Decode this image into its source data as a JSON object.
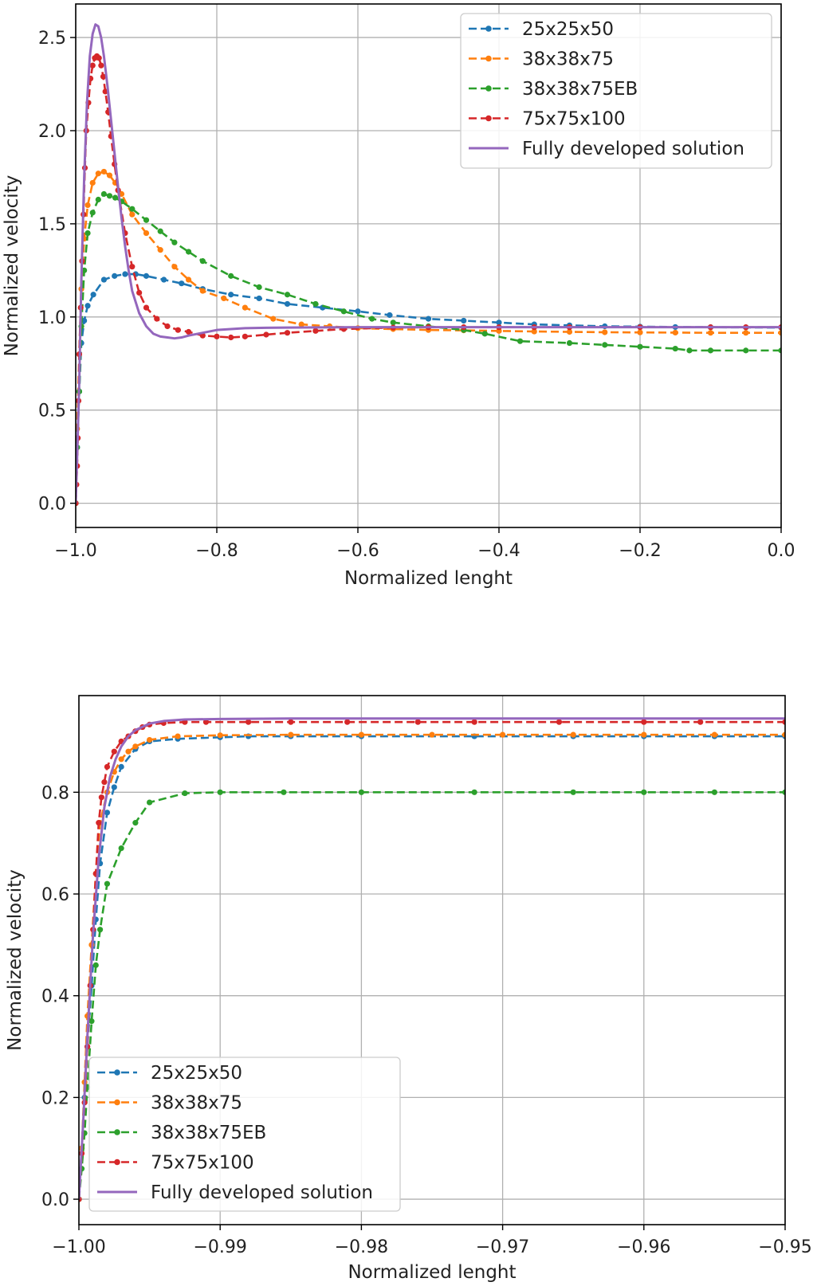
{
  "chart_data": [
    {
      "type": "line",
      "xlabel": "Normalized lenght",
      "ylabel": "Normalized velocity",
      "xlim": [
        -1.0,
        0.0
      ],
      "ylim": [
        -0.13,
        2.68
      ],
      "xticks": [
        -1.0,
        -0.8,
        -0.6,
        -0.4,
        -0.2,
        0.0
      ],
      "xtick_labels": [
        "−1.0",
        "−0.8",
        "−0.6",
        "−0.4",
        "−0.2",
        "0.0"
      ],
      "yticks": [
        0.0,
        0.5,
        1.0,
        1.5,
        2.0,
        2.5
      ],
      "ytick_labels": [
        "0.0",
        "0.5",
        "1.0",
        "1.5",
        "2.0",
        "2.5"
      ],
      "grid": true,
      "legend_position": "top-right",
      "series": [
        {
          "name": "25x25x50",
          "color": "#1f77b4",
          "style": "dashed-markers",
          "x": [
            -1.0,
            -0.998,
            -0.995,
            -0.992,
            -0.988,
            -0.983,
            -0.975,
            -0.96,
            -0.945,
            -0.93,
            -0.915,
            -0.9,
            -0.875,
            -0.85,
            -0.82,
            -0.78,
            -0.74,
            -0.7,
            -0.65,
            -0.6,
            -0.555,
            -0.5,
            -0.45,
            -0.4,
            -0.35,
            -0.3,
            -0.25,
            -0.2,
            -0.15,
            -0.1,
            -0.05,
            0.0
          ],
          "y": [
            0.0,
            0.3,
            0.6,
            0.86,
            0.98,
            1.06,
            1.12,
            1.2,
            1.22,
            1.23,
            1.23,
            1.22,
            1.2,
            1.18,
            1.15,
            1.12,
            1.1,
            1.07,
            1.05,
            1.03,
            1.01,
            0.99,
            0.98,
            0.97,
            0.96,
            0.955,
            0.95,
            0.948,
            0.946,
            0.945,
            0.944,
            0.943
          ]
        },
        {
          "name": "38x38x75",
          "color": "#ff7f0e",
          "style": "dashed-markers",
          "x": [
            -1.0,
            -0.998,
            -0.995,
            -0.992,
            -0.988,
            -0.983,
            -0.976,
            -0.968,
            -0.96,
            -0.952,
            -0.944,
            -0.935,
            -0.92,
            -0.9,
            -0.88,
            -0.86,
            -0.84,
            -0.82,
            -0.79,
            -0.76,
            -0.72,
            -0.68,
            -0.64,
            -0.6,
            -0.55,
            -0.5,
            -0.45,
            -0.4,
            -0.35,
            -0.3,
            -0.25,
            -0.2,
            -0.15,
            -0.1,
            -0.05,
            0.0
          ],
          "y": [
            0.0,
            0.4,
            0.8,
            1.15,
            1.42,
            1.6,
            1.72,
            1.77,
            1.78,
            1.76,
            1.72,
            1.66,
            1.55,
            1.45,
            1.36,
            1.27,
            1.2,
            1.14,
            1.1,
            1.05,
            0.99,
            0.96,
            0.95,
            0.94,
            0.935,
            0.93,
            0.928,
            0.925,
            0.922,
            0.92,
            0.918,
            0.917,
            0.916,
            0.915,
            0.915,
            0.915
          ]
        },
        {
          "name": "38x38x75EB",
          "color": "#2ca02c",
          "style": "dashed-markers",
          "x": [
            -1.0,
            -0.998,
            -0.995,
            -0.992,
            -0.988,
            -0.983,
            -0.976,
            -0.968,
            -0.96,
            -0.952,
            -0.944,
            -0.935,
            -0.92,
            -0.9,
            -0.88,
            -0.86,
            -0.84,
            -0.82,
            -0.78,
            -0.74,
            -0.7,
            -0.66,
            -0.62,
            -0.58,
            -0.55,
            -0.5,
            -0.45,
            -0.42,
            -0.37,
            -0.3,
            -0.25,
            -0.2,
            -0.15,
            -0.13,
            -0.1,
            -0.05,
            0.0
          ],
          "y": [
            0.0,
            0.3,
            0.6,
            0.95,
            1.25,
            1.45,
            1.56,
            1.63,
            1.66,
            1.65,
            1.64,
            1.62,
            1.58,
            1.52,
            1.46,
            1.4,
            1.35,
            1.3,
            1.22,
            1.16,
            1.12,
            1.07,
            1.03,
            0.99,
            0.97,
            0.95,
            0.93,
            0.91,
            0.87,
            0.86,
            0.85,
            0.84,
            0.83,
            0.82,
            0.82,
            0.82,
            0.82
          ]
        },
        {
          "name": "75x75x100",
          "color": "#d62728",
          "style": "dashed-markers",
          "x": [
            -1.0,
            -0.999,
            -0.998,
            -0.997,
            -0.996,
            -0.995,
            -0.993,
            -0.991,
            -0.989,
            -0.987,
            -0.985,
            -0.982,
            -0.979,
            -0.976,
            -0.973,
            -0.97,
            -0.967,
            -0.964,
            -0.961,
            -0.958,
            -0.954,
            -0.95,
            -0.945,
            -0.94,
            -0.93,
            -0.92,
            -0.91,
            -0.9,
            -0.885,
            -0.87,
            -0.855,
            -0.84,
            -0.82,
            -0.8,
            -0.78,
            -0.76,
            -0.73,
            -0.7,
            -0.66,
            -0.62,
            -0.55,
            -0.5,
            -0.45,
            -0.4,
            -0.35,
            -0.3,
            -0.2,
            -0.1,
            -0.05,
            0.0
          ],
          "y": [
            0.0,
            0.1,
            0.2,
            0.35,
            0.55,
            0.8,
            1.05,
            1.3,
            1.55,
            1.8,
            2.0,
            2.15,
            2.28,
            2.35,
            2.39,
            2.4,
            2.39,
            2.35,
            2.29,
            2.21,
            2.1,
            1.97,
            1.82,
            1.68,
            1.45,
            1.27,
            1.13,
            1.05,
            0.99,
            0.95,
            0.93,
            0.92,
            0.9,
            0.895,
            0.89,
            0.895,
            0.905,
            0.915,
            0.925,
            0.935,
            0.943,
            0.945,
            0.945,
            0.945,
            0.945,
            0.945,
            0.945,
            0.945,
            0.945,
            0.945
          ]
        },
        {
          "name": "Fully developed solution",
          "color": "#9467bd",
          "style": "solid",
          "x": [
            -1.0,
            -0.998,
            -0.995,
            -0.992,
            -0.988,
            -0.984,
            -0.98,
            -0.976,
            -0.972,
            -0.968,
            -0.964,
            -0.96,
            -0.955,
            -0.95,
            -0.945,
            -0.94,
            -0.935,
            -0.93,
            -0.925,
            -0.92,
            -0.91,
            -0.9,
            -0.89,
            -0.88,
            -0.87,
            -0.86,
            -0.85,
            -0.84,
            -0.82,
            -0.8,
            -0.78,
            -0.76,
            -0.73,
            -0.7,
            -0.65,
            -0.6,
            -0.5,
            -0.4,
            -0.3,
            -0.2,
            -0.1,
            0.0
          ],
          "y": [
            0.0,
            0.25,
            0.65,
            1.2,
            1.75,
            2.15,
            2.4,
            2.52,
            2.57,
            2.56,
            2.5,
            2.4,
            2.24,
            2.06,
            1.88,
            1.7,
            1.53,
            1.38,
            1.25,
            1.14,
            1.02,
            0.95,
            0.91,
            0.895,
            0.89,
            0.885,
            0.89,
            0.9,
            0.915,
            0.93,
            0.935,
            0.94,
            0.942,
            0.943,
            0.944,
            0.945,
            0.945,
            0.945,
            0.945,
            0.945,
            0.945,
            0.945
          ]
        }
      ]
    },
    {
      "type": "line",
      "xlabel": "Normalized lenght",
      "ylabel": "Normalized velocity",
      "xlim": [
        -1.0,
        -0.95
      ],
      "ylim": [
        -0.05,
        0.99
      ],
      "xticks": [
        -1.0,
        -0.99,
        -0.98,
        -0.97,
        -0.96,
        -0.95
      ],
      "xtick_labels": [
        "−1.00",
        "−0.99",
        "−0.98",
        "−0.97",
        "−0.96",
        "−0.95"
      ],
      "yticks": [
        0.0,
        0.2,
        0.4,
        0.6,
        0.8
      ],
      "ytick_labels": [
        "0.0",
        "0.2",
        "0.4",
        "0.6",
        "0.8"
      ],
      "grid": true,
      "legend_position": "bottom-left",
      "series": [
        {
          "name": "25x25x50",
          "color": "#1f77b4",
          "style": "dashed-markers",
          "x": [
            -1.0,
            -0.9998,
            -0.9996,
            -0.9994,
            -0.9991,
            -0.9988,
            -0.9985,
            -0.998,
            -0.9975,
            -0.997,
            -0.996,
            -0.995,
            -0.993,
            -0.99,
            -0.988,
            -0.985,
            -0.98,
            -0.972,
            -0.965,
            -0.96,
            -0.955,
            -0.95
          ],
          "y": [
            0.0,
            0.1,
            0.2,
            0.3,
            0.42,
            0.55,
            0.66,
            0.76,
            0.81,
            0.85,
            0.885,
            0.9,
            0.905,
            0.908,
            0.91,
            0.91,
            0.91,
            0.91,
            0.91,
            0.91,
            0.91,
            0.91
          ]
        },
        {
          "name": "38x38x75",
          "color": "#ff7f0e",
          "style": "dashed-markers",
          "x": [
            -1.0,
            -0.9998,
            -0.9996,
            -0.9994,
            -0.9991,
            -0.9988,
            -0.9985,
            -0.998,
            -0.9975,
            -0.997,
            -0.9965,
            -0.996,
            -0.995,
            -0.993,
            -0.99,
            -0.985,
            -0.98,
            -0.975,
            -0.97,
            -0.965,
            -0.96,
            -0.955,
            -0.95
          ],
          "y": [
            0.0,
            0.1,
            0.23,
            0.36,
            0.5,
            0.64,
            0.74,
            0.8,
            0.84,
            0.865,
            0.88,
            0.89,
            0.903,
            0.91,
            0.912,
            0.913,
            0.913,
            0.913,
            0.913,
            0.913,
            0.913,
            0.913,
            0.913
          ]
        },
        {
          "name": "38x38x75EB",
          "color": "#2ca02c",
          "style": "dashed-markers",
          "x": [
            -1.0,
            -0.9998,
            -0.9996,
            -0.9994,
            -0.9991,
            -0.9988,
            -0.9985,
            -0.998,
            -0.997,
            -0.996,
            -0.995,
            -0.9925,
            -0.99,
            -0.9855,
            -0.98,
            -0.972,
            -0.965,
            -0.96,
            -0.955,
            -0.95
          ],
          "y": [
            0.0,
            0.06,
            0.13,
            0.22,
            0.35,
            0.46,
            0.53,
            0.62,
            0.69,
            0.74,
            0.78,
            0.798,
            0.8,
            0.8,
            0.8,
            0.8,
            0.8,
            0.8,
            0.8,
            0.8
          ]
        },
        {
          "name": "75x75x100",
          "color": "#d62728",
          "style": "dashed-markers",
          "x": [
            -1.0,
            -0.9998,
            -0.9996,
            -0.9994,
            -0.9992,
            -0.999,
            -0.9988,
            -0.9986,
            -0.9984,
            -0.9982,
            -0.998,
            -0.9975,
            -0.997,
            -0.9965,
            -0.996,
            -0.9955,
            -0.995,
            -0.994,
            -0.9925,
            -0.991,
            -0.988,
            -0.985,
            -0.981,
            -0.976,
            -0.972,
            -0.966,
            -0.96,
            -0.956,
            -0.95
          ],
          "y": [
            0.0,
            0.09,
            0.19,
            0.3,
            0.42,
            0.53,
            0.64,
            0.74,
            0.79,
            0.82,
            0.85,
            0.88,
            0.9,
            0.91,
            0.92,
            0.928,
            0.933,
            0.936,
            0.938,
            0.938,
            0.938,
            0.938,
            0.938,
            0.938,
            0.938,
            0.938,
            0.938,
            0.938,
            0.938
          ]
        },
        {
          "name": "Fully developed solution",
          "color": "#9467bd",
          "style": "solid",
          "x": [
            -1.0,
            -0.9997,
            -0.9994,
            -0.999,
            -0.9986,
            -0.9982,
            -0.9978,
            -0.9974,
            -0.997,
            -0.9965,
            -0.996,
            -0.995,
            -0.994,
            -0.9925,
            -0.99,
            -0.985,
            -0.98,
            -0.97,
            -0.96,
            -0.95
          ],
          "y": [
            0.0,
            0.15,
            0.32,
            0.52,
            0.67,
            0.77,
            0.83,
            0.865,
            0.89,
            0.91,
            0.922,
            0.935,
            0.94,
            0.943,
            0.944,
            0.945,
            0.945,
            0.945,
            0.945,
            0.945
          ]
        }
      ]
    }
  ]
}
